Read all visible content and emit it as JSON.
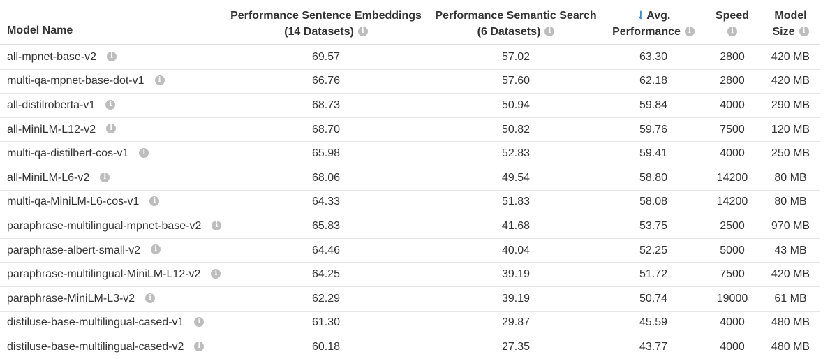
{
  "columns": {
    "model_name": "Model Name",
    "sentence_line1": "Performance Sentence Embeddings",
    "sentence_line2": "(14 Datasets)",
    "semantic_line1": "Performance Semantic Search",
    "semantic_line2": "(6 Datasets)",
    "avg_line1": "Avg.",
    "avg_line2": "Performance",
    "speed": "Speed",
    "size_line1": "Model",
    "size_line2": "Size"
  },
  "sort_icon": "↿̅",
  "info_glyph": "i",
  "rows": [
    {
      "name": "all-mpnet-base-v2",
      "sentence": "69.57",
      "semantic": "57.02",
      "avg": "63.30",
      "speed": "2800",
      "size": "420 MB"
    },
    {
      "name": "multi-qa-mpnet-base-dot-v1",
      "sentence": "66.76",
      "semantic": "57.60",
      "avg": "62.18",
      "speed": "2800",
      "size": "420 MB"
    },
    {
      "name": "all-distilroberta-v1",
      "sentence": "68.73",
      "semantic": "50.94",
      "avg": "59.84",
      "speed": "4000",
      "size": "290 MB"
    },
    {
      "name": "all-MiniLM-L12-v2",
      "sentence": "68.70",
      "semantic": "50.82",
      "avg": "59.76",
      "speed": "7500",
      "size": "120 MB"
    },
    {
      "name": "multi-qa-distilbert-cos-v1",
      "sentence": "65.98",
      "semantic": "52.83",
      "avg": "59.41",
      "speed": "4000",
      "size": "250 MB"
    },
    {
      "name": "all-MiniLM-L6-v2",
      "sentence": "68.06",
      "semantic": "49.54",
      "avg": "58.80",
      "speed": "14200",
      "size": "80 MB"
    },
    {
      "name": "multi-qa-MiniLM-L6-cos-v1",
      "sentence": "64.33",
      "semantic": "51.83",
      "avg": "58.08",
      "speed": "14200",
      "size": "80 MB"
    },
    {
      "name": "paraphrase-multilingual-mpnet-base-v2",
      "sentence": "65.83",
      "semantic": "41.68",
      "avg": "53.75",
      "speed": "2500",
      "size": "970 MB"
    },
    {
      "name": "paraphrase-albert-small-v2",
      "sentence": "64.46",
      "semantic": "40.04",
      "avg": "52.25",
      "speed": "5000",
      "size": "43 MB"
    },
    {
      "name": "paraphrase-multilingual-MiniLM-L12-v2",
      "sentence": "64.25",
      "semantic": "39.19",
      "avg": "51.72",
      "speed": "7500",
      "size": "420 MB"
    },
    {
      "name": "paraphrase-MiniLM-L3-v2",
      "sentence": "62.29",
      "semantic": "39.19",
      "avg": "50.74",
      "speed": "19000",
      "size": "61 MB"
    },
    {
      "name": "distiluse-base-multilingual-cased-v1",
      "sentence": "61.30",
      "semantic": "29.87",
      "avg": "45.59",
      "speed": "4000",
      "size": "480 MB"
    },
    {
      "name": "distiluse-base-multilingual-cased-v2",
      "sentence": "60.18",
      "semantic": "27.35",
      "avg": "43.77",
      "speed": "4000",
      "size": "480 MB"
    }
  ]
}
